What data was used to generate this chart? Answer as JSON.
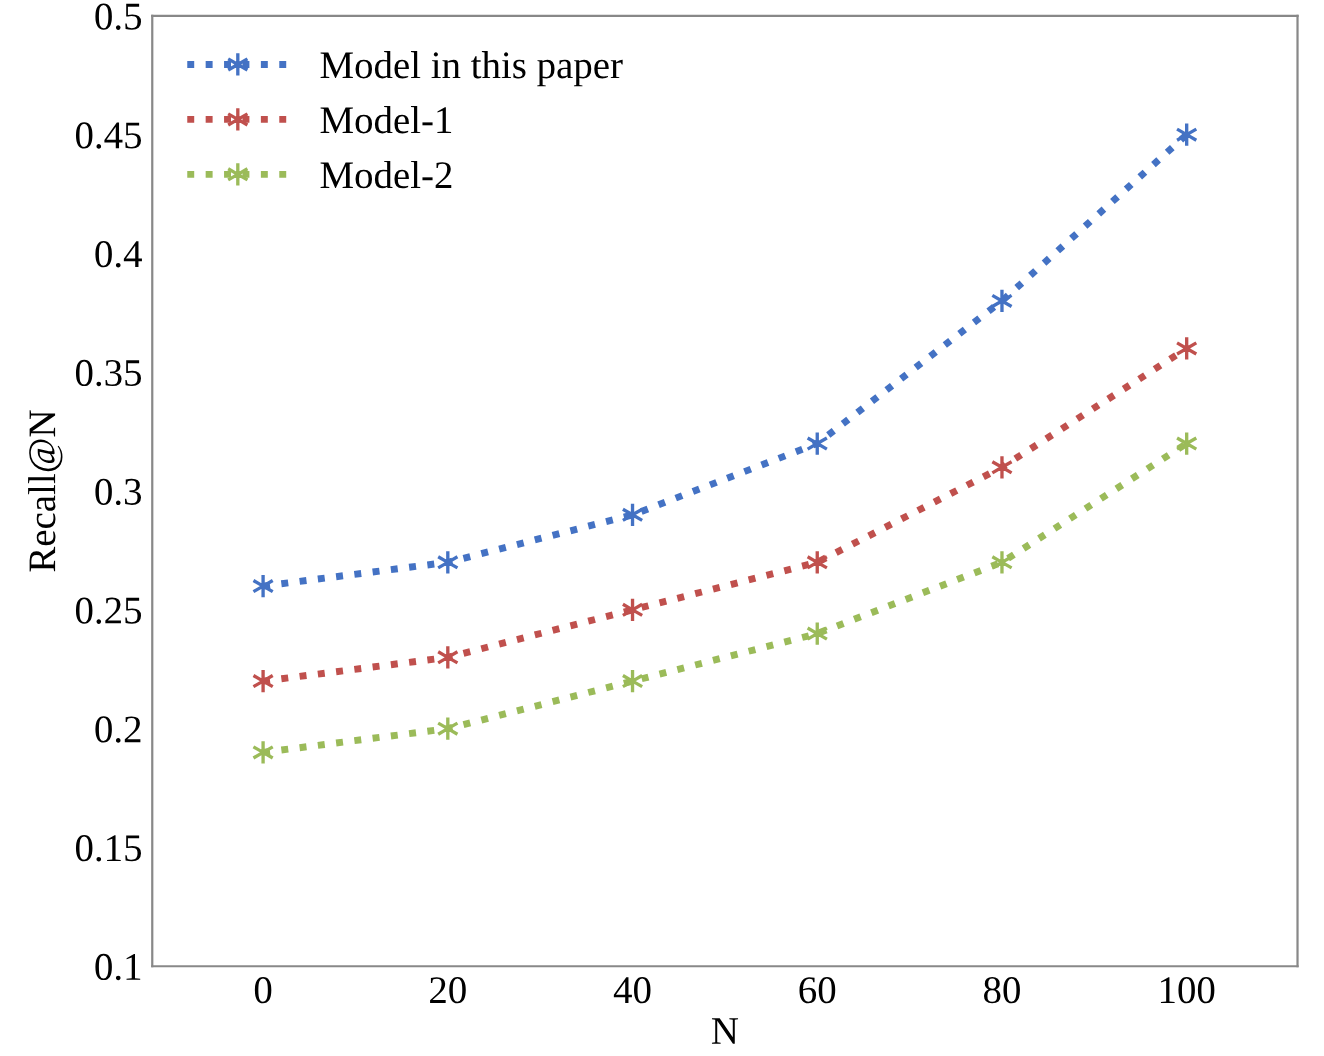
{
  "chart_data": {
    "type": "line",
    "xlabel": "N",
    "ylabel": "Recall@N",
    "categories": [
      "0",
      "20",
      "40",
      "60",
      "80",
      "100"
    ],
    "series": [
      {
        "name": "Model in this paper",
        "color": "#4472c4",
        "values": [
          0.26,
          0.27,
          0.29,
          0.32,
          0.38,
          0.45
        ]
      },
      {
        "name": "Model-1",
        "color": "#c0504d",
        "values": [
          0.22,
          0.23,
          0.25,
          0.27,
          0.31,
          0.36
        ]
      },
      {
        "name": "Model-2",
        "color": "#9bbb59",
        "values": [
          0.19,
          0.2,
          0.22,
          0.24,
          0.27,
          0.32
        ]
      }
    ],
    "ylim": [
      0.1,
      0.5
    ],
    "yticks": [
      0.1,
      0.15,
      0.2,
      0.25,
      0.3,
      0.35,
      0.4,
      0.45,
      0.5
    ],
    "grid": false,
    "legend": "top left",
    "marker": "cross",
    "line_style": "dotted"
  }
}
